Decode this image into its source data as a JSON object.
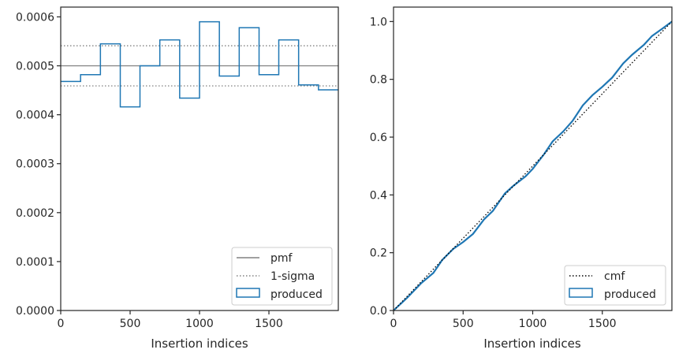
{
  "chart_data": [
    {
      "type": "line",
      "xlabel": "Insertion indices",
      "ylabel": "",
      "xlim": [
        0,
        2000
      ],
      "ylim": [
        0,
        0.00062
      ],
      "xticks": [
        0,
        500,
        1000,
        1500
      ],
      "xtick_labels": [
        "0",
        "500",
        "1000",
        "1500"
      ],
      "yticks": [
        0,
        0.0001,
        0.0002,
        0.0003,
        0.0004,
        0.0005,
        0.0006
      ],
      "ytick_labels": [
        "0.0000",
        "0.0001",
        "0.0002",
        "0.0003",
        "0.0004",
        "0.0005",
        "0.0006"
      ],
      "grid": false,
      "legend_position": "lower right",
      "pmf": {
        "name": "pmf",
        "value": 0.0005,
        "color": "#808080"
      },
      "sigma": {
        "name": "1-sigma",
        "values": [
          0.000459,
          0.000541
        ],
        "color": "#808080"
      },
      "produced": {
        "name": "produced",
        "color": "#1f77b4",
        "bin_edges": [
          0,
          143,
          286,
          429,
          571,
          714,
          857,
          1000,
          1143,
          1286,
          1429,
          1571,
          1714,
          1857,
          2000
        ],
        "values": [
          0.000468,
          0.000482,
          0.000545,
          0.000416,
          0.0005,
          0.000553,
          0.000434,
          0.00059,
          0.000479,
          0.000578,
          0.000482,
          0.000553,
          0.000461,
          0.000451
        ]
      }
    },
    {
      "type": "line",
      "xlabel": "Insertion indices",
      "ylabel": "",
      "xlim": [
        0,
        2000
      ],
      "ylim": [
        0,
        1.05
      ],
      "xticks": [
        0,
        500,
        1000,
        1500
      ],
      "xtick_labels": [
        "0",
        "500",
        "1000",
        "1500"
      ],
      "yticks": [
        0,
        0.2,
        0.4,
        0.6,
        0.8,
        1.0
      ],
      "ytick_labels": [
        "0.0",
        "0.2",
        "0.4",
        "0.6",
        "0.8",
        "1.0"
      ],
      "grid": false,
      "legend_position": "lower right",
      "cmf": {
        "name": "cmf",
        "x": [
          0,
          2000
        ],
        "y": [
          0,
          1.0
        ],
        "color": "#000000"
      },
      "produced": {
        "name": "produced",
        "color": "#1f77b4",
        "x": [
          0,
          100,
          200,
          286,
          350,
          429,
          500,
          571,
          650,
          714,
          800,
          857,
          950,
          1000,
          1080,
          1143,
          1220,
          1286,
          1360,
          1429,
          1500,
          1571,
          1650,
          1714,
          1800,
          1857,
          1930,
          2000
        ],
        "y": [
          0,
          0.045,
          0.095,
          0.13,
          0.175,
          0.213,
          0.237,
          0.265,
          0.315,
          0.345,
          0.405,
          0.43,
          0.465,
          0.49,
          0.54,
          0.585,
          0.62,
          0.656,
          0.71,
          0.745,
          0.774,
          0.806,
          0.855,
          0.885,
          0.92,
          0.95,
          0.975,
          1.0
        ]
      }
    }
  ]
}
